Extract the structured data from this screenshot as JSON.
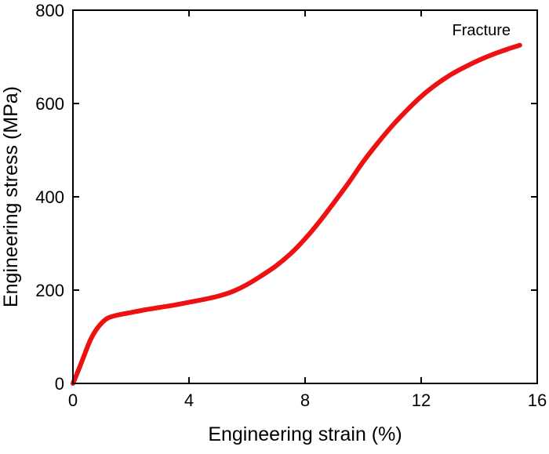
{
  "chart_data": {
    "type": "line",
    "title": "",
    "xlabel": "Engineering strain (%)",
    "ylabel": "Engineering stress (MPa)",
    "xlim": [
      0,
      16
    ],
    "ylim": [
      0,
      800
    ],
    "xticks": [
      0,
      4,
      8,
      12,
      16
    ],
    "yticks": [
      0,
      200,
      400,
      600,
      800
    ],
    "xtick_labels": [
      "0",
      "4",
      "8",
      "12",
      "16"
    ],
    "ytick_labels": [
      "0",
      "200",
      "400",
      "600",
      "800"
    ],
    "grid": false,
    "legend": "none",
    "annotations": [
      {
        "text": "Fracture",
        "x": 15.4,
        "y": 725
      }
    ],
    "series": [
      {
        "color": "#ee1111",
        "x": [
          0,
          0.2,
          0.4,
          0.6,
          0.8,
          1.0,
          1.2,
          1.5,
          2.0,
          2.5,
          3.0,
          3.5,
          4.0,
          4.5,
          5.0,
          5.5,
          6.0,
          6.5,
          7.0,
          7.5,
          8.0,
          8.5,
          9.0,
          9.5,
          10.0,
          10.5,
          11.0,
          11.5,
          12.0,
          12.5,
          13.0,
          13.5,
          14.0,
          14.5,
          15.0,
          15.4
        ],
        "y": [
          0,
          30,
          62,
          93,
          115,
          130,
          140,
          146,
          152,
          158,
          163,
          168,
          174,
          180,
          187,
          197,
          212,
          231,
          252,
          278,
          310,
          347,
          388,
          430,
          475,
          515,
          552,
          585,
          615,
          640,
          661,
          678,
          693,
          706,
          717,
          725
        ]
      }
    ]
  }
}
